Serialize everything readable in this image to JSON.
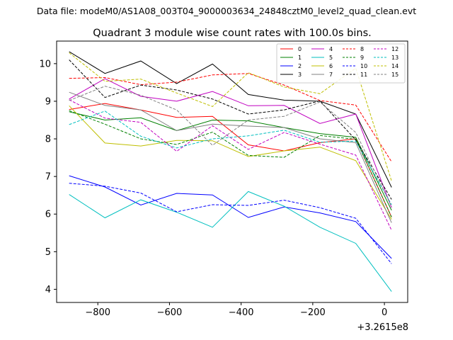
{
  "chart_data": {
    "type": "line",
    "suptitle": "Data file: modeM0/AS1A08_003T04_9000003634_24848cztM0_level2_quad_clean.evt",
    "title": "Quadrant 3 module wise count rates with 100.0s bins.",
    "xlabel": "",
    "ylabel": "",
    "offset_label": "+3.2615e8",
    "xlim": [
      -915,
      65
    ],
    "ylim": [
      3.65,
      10.6
    ],
    "x_ticks": [
      -800,
      -600,
      -400,
      -200,
      0
    ],
    "x_tick_labels": [
      "−800",
      "−600",
      "−400",
      "−200",
      "0"
    ],
    "y_ticks": [
      4,
      5,
      6,
      7,
      8,
      9,
      10
    ],
    "y_tick_labels": [
      "4",
      "5",
      "6",
      "7",
      "8",
      "9",
      "10"
    ],
    "legend_position": "upper-right",
    "x": [
      -880,
      -780,
      -680,
      -580,
      -480,
      -380,
      -280,
      -180,
      -80,
      20
    ],
    "series": [
      {
        "name": "0",
        "color": "#ff0000",
        "dash": "solid",
        "values": [
          8.78,
          8.94,
          8.77,
          8.57,
          8.6,
          7.84,
          7.68,
          7.9,
          8.0,
          5.92
        ]
      },
      {
        "name": "1",
        "color": "#008000",
        "dash": "solid",
        "values": [
          8.72,
          8.5,
          8.56,
          8.22,
          8.5,
          8.48,
          8.3,
          8.14,
          8.04,
          6.1
        ]
      },
      {
        "name": "2",
        "color": "#0000ff",
        "dash": "solid",
        "values": [
          7.02,
          6.72,
          6.24,
          6.55,
          6.51,
          5.91,
          6.19,
          6.03,
          5.8,
          4.82
        ]
      },
      {
        "name": "3",
        "color": "#000000",
        "dash": "solid",
        "values": [
          10.32,
          9.74,
          10.07,
          9.47,
          9.99,
          9.18,
          9.03,
          9.0,
          8.66,
          6.71
        ]
      },
      {
        "name": "4",
        "color": "#c000c0",
        "dash": "solid",
        "values": [
          9.06,
          9.6,
          9.13,
          9.0,
          9.26,
          8.88,
          8.89,
          8.41,
          8.66,
          6.17
        ]
      },
      {
        "name": "5",
        "color": "#00bfbf",
        "dash": "solid",
        "values": [
          6.52,
          5.9,
          6.38,
          6.05,
          5.65,
          6.6,
          6.21,
          5.65,
          5.22,
          3.94
        ]
      },
      {
        "name": "6",
        "color": "#bfbf00",
        "dash": "solid",
        "values": [
          8.88,
          7.89,
          7.81,
          7.96,
          7.95,
          7.53,
          7.68,
          7.78,
          7.42,
          5.86
        ]
      },
      {
        "name": "7",
        "color": "#808080",
        "dash": "solid",
        "values": [
          9.24,
          8.89,
          8.77,
          8.22,
          8.39,
          8.34,
          8.3,
          8.0,
          7.9,
          5.77
        ]
      },
      {
        "name": "8",
        "color": "#ff0000",
        "dash": "dashed",
        "values": [
          9.61,
          9.63,
          9.44,
          9.51,
          9.7,
          9.74,
          9.43,
          9.02,
          8.9,
          7.39
        ]
      },
      {
        "name": "9",
        "color": "#008000",
        "dash": "dashed",
        "values": [
          8.75,
          8.39,
          8.0,
          7.85,
          8.18,
          7.56,
          7.51,
          8.09,
          7.99,
          5.92
        ]
      },
      {
        "name": "10",
        "color": "#0000ff",
        "dash": "dashed",
        "values": [
          6.82,
          6.74,
          6.56,
          6.06,
          6.25,
          6.23,
          6.37,
          6.17,
          5.89,
          4.68
        ]
      },
      {
        "name": "11",
        "color": "#000000",
        "dash": "dashed",
        "values": [
          10.1,
          9.1,
          9.43,
          9.3,
          9.06,
          8.66,
          8.77,
          9.01,
          7.97,
          6.39
        ]
      },
      {
        "name": "12",
        "color": "#c000c0",
        "dash": "dashed",
        "values": [
          9.04,
          8.55,
          8.44,
          7.67,
          8.35,
          7.72,
          8.17,
          7.86,
          7.57,
          5.57
        ]
      },
      {
        "name": "13",
        "color": "#00bfbf",
        "dash": "dashed",
        "values": [
          8.38,
          8.74,
          8.07,
          7.76,
          8.0,
          8.08,
          8.23,
          7.91,
          7.94,
          6.25
        ]
      },
      {
        "name": "14",
        "color": "#bfbf00",
        "dash": "dashed",
        "values": [
          10.29,
          9.53,
          9.59,
          9.22,
          8.86,
          9.76,
          9.38,
          9.2,
          9.88,
          6.88
        ]
      },
      {
        "name": "15",
        "color": "#808080",
        "dash": "dashed",
        "values": [
          9.02,
          9.4,
          9.16,
          8.77,
          7.83,
          8.5,
          8.6,
          8.98,
          8.17,
          6.2
        ]
      }
    ]
  }
}
